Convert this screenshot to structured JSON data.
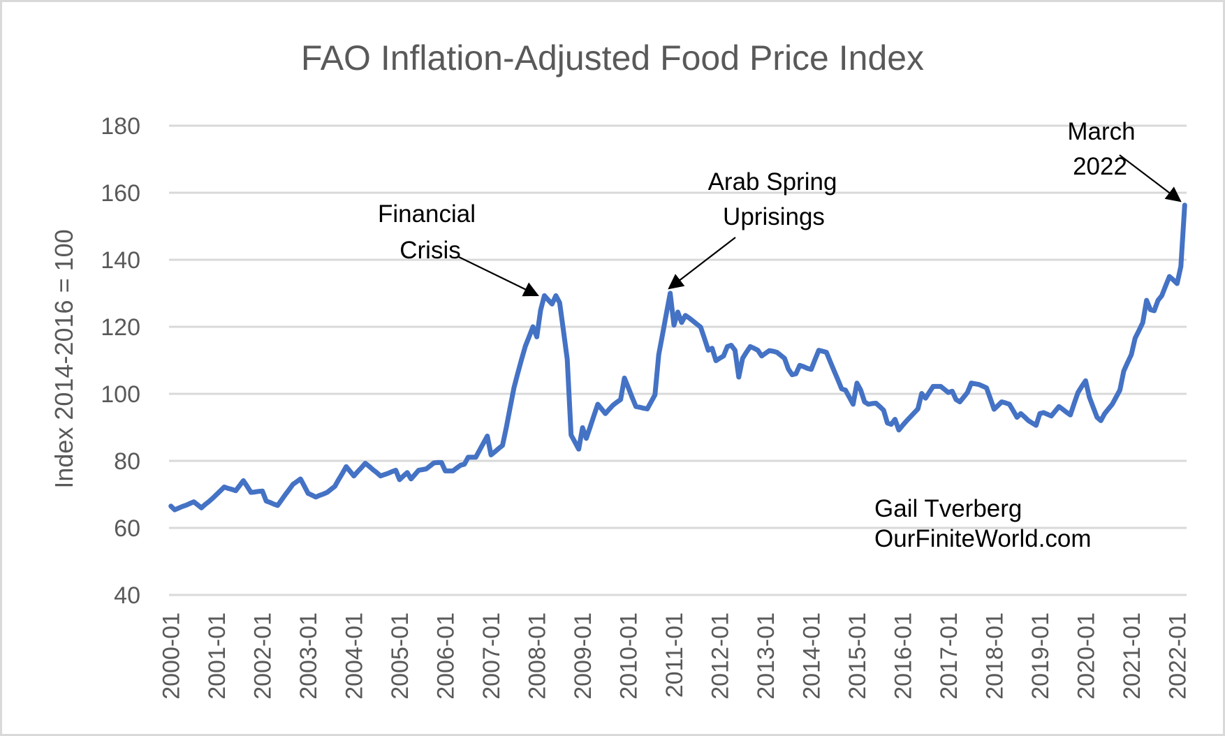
{
  "chart_data": {
    "type": "line",
    "title": "FAO Inflation-Adjusted Food Price Index",
    "xlabel": "",
    "ylabel": "Index 2014-2016 = 100",
    "ylim": [
      40,
      180
    ],
    "yticks": [
      40,
      60,
      80,
      100,
      120,
      140,
      160,
      180
    ],
    "grid": true,
    "legend": "none",
    "x_start": "2000-01",
    "x_end": "2022-03",
    "x_frequency": "monthly",
    "xtick_labels": [
      "2000-01",
      "2001-01",
      "2002-01",
      "2003-01",
      "2004-01",
      "2005-01",
      "2006-01",
      "2007-01",
      "2008-01",
      "2009-01",
      "2010-01",
      "2011-01",
      "2012-01",
      "2013-01",
      "2014-01",
      "2015-01",
      "2016-01",
      "2017-01",
      "2018-01",
      "2019-01",
      "2020-01",
      "2021-01",
      "2022-01"
    ],
    "series": [
      {
        "name": "FAO Inflation-Adjusted Food Price Index",
        "color": "#4472C4",
        "values": [
          66.5,
          65.4,
          65.9,
          66.4,
          66.8,
          67.3,
          67.8,
          66.9,
          66.0,
          67.0,
          67.9,
          68.9,
          70.0,
          71.1,
          72.2,
          71.8,
          71.5,
          71.1,
          72.6,
          74.1,
          72.4,
          70.6,
          70.7,
          70.9,
          71.0,
          68.0,
          67.6,
          67.1,
          66.7,
          68.3,
          69.9,
          71.4,
          73.0,
          73.8,
          74.6,
          72.5,
          70.3,
          69.8,
          69.2,
          69.7,
          70.1,
          70.6,
          71.5,
          72.4,
          74.4,
          76.3,
          78.3,
          76.9,
          75.5,
          76.8,
          78.0,
          79.3,
          78.4,
          77.4,
          76.5,
          75.5,
          75.9,
          76.3,
          76.8,
          77.2,
          74.4,
          75.5,
          76.5,
          74.6,
          75.9,
          77.2,
          77.4,
          77.6,
          78.5,
          79.4,
          79.5,
          79.5,
          77.0,
          77.0,
          77.0,
          77.9,
          78.7,
          79.0,
          81.1,
          81.1,
          81.1,
          83.2,
          85.3,
          87.4,
          81.8,
          82.7,
          83.7,
          84.6,
          89.9,
          95.9,
          101.8,
          106.1,
          110.3,
          114.2,
          117.1,
          120.0,
          117.0,
          125.0,
          129.3,
          128.0,
          126.8,
          129.3,
          127.2,
          118.8,
          110.3,
          87.7,
          85.6,
          83.5,
          89.9,
          86.7,
          90.1,
          93.5,
          96.9,
          95.5,
          94.1,
          95.4,
          96.6,
          97.5,
          98.3,
          104.7,
          101.9,
          99.0,
          96.2,
          96.0,
          95.7,
          95.5,
          97.6,
          99.7,
          111.7,
          117.8,
          123.9,
          130.0,
          120.5,
          124.4,
          121.3,
          123.4,
          122.6,
          121.7,
          120.8,
          119.9,
          116.5,
          113.0,
          113.6,
          109.9,
          110.6,
          111.3,
          114.1,
          114.5,
          113.0,
          105.0,
          110.6,
          112.4,
          114.1,
          113.6,
          113.0,
          111.3,
          112.1,
          112.9,
          112.7,
          112.4,
          111.5,
          110.6,
          107.4,
          105.7,
          106.0,
          108.5,
          108.1,
          107.6,
          107.3,
          110.2,
          113.0,
          112.7,
          112.4,
          109.6,
          106.9,
          104.2,
          101.5,
          101.1,
          99.0,
          96.9,
          103.2,
          101.1,
          97.6,
          96.9,
          97.1,
          97.2,
          96.2,
          95.1,
          91.3,
          90.9,
          92.4,
          89.2,
          90.6,
          91.9,
          93.1,
          94.3,
          95.5,
          100.1,
          98.7,
          100.5,
          102.2,
          102.2,
          102.2,
          101.3,
          100.4,
          100.8,
          98.3,
          97.6,
          99.0,
          100.4,
          103.2,
          103.0,
          102.8,
          102.3,
          101.8,
          98.6,
          95.4,
          96.5,
          97.6,
          97.3,
          96.9,
          95.0,
          93.0,
          94.1,
          93.1,
          92.0,
          91.3,
          90.6,
          94.1,
          94.4,
          93.9,
          93.4,
          94.8,
          96.2,
          95.4,
          94.5,
          93.7,
          97.1,
          100.4,
          102.2,
          103.9,
          99.0,
          96.0,
          93.0,
          92.0,
          94.1,
          95.5,
          96.9,
          99.0,
          101.1,
          106.8,
          109.3,
          111.7,
          116.6,
          118.9,
          121.2,
          127.9,
          125.1,
          124.8,
          127.9,
          129.3,
          132.2,
          135.0,
          134.0,
          132.9,
          138.0,
          156.3
        ]
      }
    ],
    "annotations": [
      {
        "id": "financial-crisis",
        "lines": [
          "Financial",
          "Crisis"
        ],
        "points_to": "2008 peak"
      },
      {
        "id": "arab-spring",
        "lines": [
          "Arab Spring",
          "Uprisings"
        ],
        "points_to": "2011 peak"
      },
      {
        "id": "march-2022",
        "lines": [
          "March",
          "2022"
        ],
        "points_to": "2022-03"
      }
    ],
    "credit": [
      "Gail Tverberg",
      "OurFiniteWorld.com"
    ]
  }
}
